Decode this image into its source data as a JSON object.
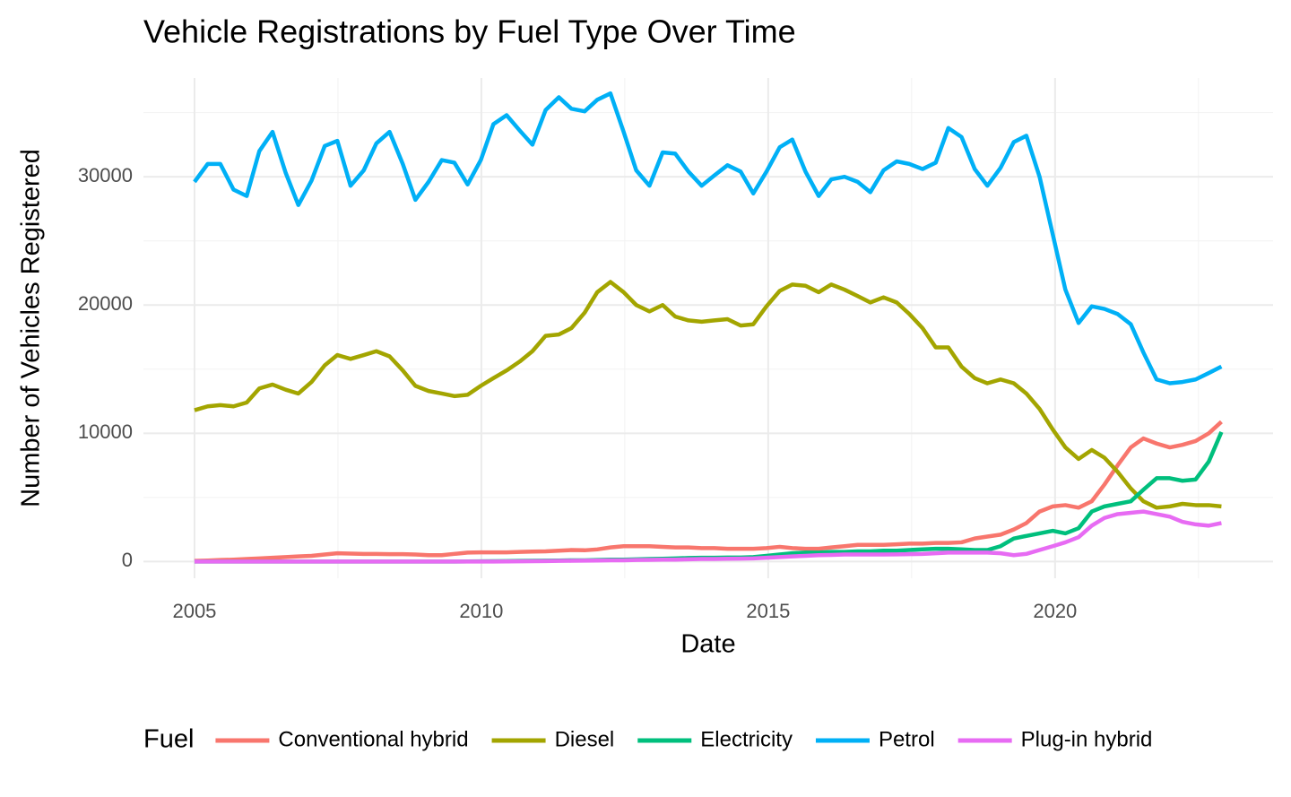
{
  "chart_data": {
    "type": "line",
    "title": "Vehicle Registrations by Fuel Type Over Time",
    "x_label": "Date",
    "y_label": "Number of Vehicles Registered",
    "legend_title": "Fuel",
    "legend_position": "bottom",
    "grid": true,
    "x": [
      2005.0,
      2005.23,
      2005.45,
      2005.68,
      2005.91,
      2006.13,
      2006.36,
      2006.59,
      2006.81,
      2007.04,
      2007.27,
      2007.49,
      2007.72,
      2007.95,
      2008.17,
      2008.4,
      2008.63,
      2008.85,
      2009.08,
      2009.31,
      2009.53,
      2009.76,
      2009.99,
      2010.21,
      2010.44,
      2010.67,
      2010.89,
      2011.12,
      2011.35,
      2011.57,
      2011.8,
      2012.02,
      2012.25,
      2012.48,
      2012.7,
      2012.93,
      2013.16,
      2013.38,
      2013.61,
      2013.84,
      2014.06,
      2014.29,
      2014.52,
      2014.74,
      2014.97,
      2015.2,
      2015.42,
      2015.65,
      2015.88,
      2016.1,
      2016.33,
      2016.56,
      2016.78,
      2017.01,
      2017.24,
      2017.46,
      2017.69,
      2017.92,
      2018.14,
      2018.37,
      2018.6,
      2018.82,
      2019.05,
      2019.28,
      2019.5,
      2019.73,
      2019.96,
      2020.18,
      2020.41,
      2020.64,
      2020.86,
      2021.09,
      2021.32,
      2021.54,
      2021.77,
      2022.0,
      2022.22,
      2022.45,
      2022.68,
      2022.9
    ],
    "xlim": [
      2004.11,
      2023.8
    ],
    "xticks": [
      2005,
      2010,
      2015,
      2020
    ],
    "xminor": [
      2007.5,
      2012.5,
      2017.5,
      2022.5
    ],
    "ylim": [
      -1300,
      37700
    ],
    "yticks": [
      0,
      10000,
      20000,
      30000
    ],
    "yminor": [
      5000,
      15000,
      25000,
      35000
    ],
    "series": [
      {
        "name": "Conventional hybrid",
        "color": "#F8766D",
        "values": [
          50,
          80,
          120,
          150,
          200,
          250,
          300,
          350,
          400,
          450,
          550,
          650,
          620,
          600,
          600,
          580,
          580,
          550,
          500,
          500,
          600,
          700,
          720,
          720,
          720,
          750,
          780,
          800,
          850,
          900,
          880,
          950,
          1100,
          1200,
          1200,
          1200,
          1150,
          1100,
          1100,
          1050,
          1050,
          1000,
          1000,
          1000,
          1050,
          1150,
          1050,
          1000,
          1000,
          1100,
          1200,
          1300,
          1300,
          1300,
          1350,
          1400,
          1400,
          1450,
          1450,
          1500,
          1800,
          1950,
          2100,
          2500,
          3000,
          3900,
          4300,
          4400,
          4200,
          4700,
          6000,
          7500,
          8900,
          9600,
          9200,
          8900,
          9100,
          9400,
          10000,
          10900
        ]
      },
      {
        "name": "Diesel",
        "color": "#A3A500",
        "values": [
          11800,
          12100,
          12200,
          12100,
          12400,
          13500,
          13800,
          13400,
          13100,
          14000,
          15300,
          16100,
          15800,
          16100,
          16400,
          16000,
          14900,
          13700,
          13300,
          13100,
          12900,
          13000,
          13700,
          14300,
          14900,
          15600,
          16400,
          17600,
          17700,
          18200,
          19400,
          21000,
          21800,
          21000,
          20000,
          19500,
          20000,
          19100,
          18800,
          18700,
          18800,
          18900,
          18400,
          18500,
          19900,
          21100,
          21600,
          21500,
          21000,
          21600,
          21200,
          20700,
          20200,
          20600,
          20200,
          19300,
          18200,
          16700,
          16700,
          15200,
          14300,
          13900,
          14200,
          13900,
          13100,
          11900,
          10300,
          8900,
          8000,
          8700,
          8100,
          7000,
          5700,
          4700,
          4200,
          4300,
          4500,
          4400,
          4400,
          4300
        ]
      },
      {
        "name": "Electricity",
        "color": "#00BF7D",
        "values": [
          0,
          0,
          0,
          0,
          0,
          0,
          0,
          0,
          0,
          0,
          0,
          0,
          0,
          0,
          0,
          0,
          0,
          0,
          0,
          0,
          0,
          10,
          20,
          30,
          40,
          50,
          60,
          70,
          80,
          100,
          100,
          120,
          150,
          150,
          180,
          200,
          220,
          250,
          280,
          300,
          300,
          320,
          320,
          350,
          450,
          550,
          650,
          700,
          700,
          750,
          750,
          800,
          800,
          850,
          850,
          900,
          950,
          1000,
          1000,
          950,
          900,
          900,
          1200,
          1800,
          2000,
          2200,
          2400,
          2200,
          2600,
          3900,
          4300,
          4500,
          4700,
          5600,
          6500,
          6500,
          6300,
          6400,
          7800,
          10100
        ]
      },
      {
        "name": "Petrol",
        "color": "#00B0F6",
        "values": [
          29600,
          31000,
          31000,
          29000,
          28500,
          32000,
          33500,
          30300,
          27800,
          29700,
          32400,
          32800,
          29300,
          30500,
          32600,
          33500,
          31000,
          28200,
          29600,
          31300,
          31100,
          29400,
          31300,
          34100,
          34800,
          33600,
          32500,
          35200,
          36200,
          35300,
          35100,
          36000,
          36500,
          33500,
          30500,
          29300,
          31900,
          31800,
          30400,
          29300,
          30100,
          30900,
          30400,
          28700,
          30400,
          32300,
          32900,
          30400,
          28500,
          29800,
          30000,
          29600,
          28800,
          30500,
          31200,
          31000,
          30600,
          31100,
          33800,
          33100,
          30600,
          29300,
          30700,
          32700,
          33200,
          30000,
          25500,
          21200,
          18600,
          19900,
          19700,
          19300,
          18500,
          16300,
          14200,
          13900,
          14000,
          14200,
          14700,
          15200
        ]
      },
      {
        "name": "Plug-in hybrid",
        "color": "#E76BF3",
        "values": [
          0,
          0,
          0,
          0,
          0,
          0,
          0,
          0,
          0,
          0,
          0,
          0,
          0,
          0,
          0,
          0,
          0,
          0,
          0,
          0,
          0,
          0,
          0,
          0,
          10,
          20,
          30,
          40,
          50,
          60,
          70,
          80,
          100,
          100,
          120,
          130,
          150,
          150,
          180,
          200,
          200,
          220,
          230,
          250,
          300,
          350,
          400,
          450,
          500,
          520,
          550,
          550,
          550,
          550,
          560,
          580,
          600,
          650,
          700,
          700,
          700,
          700,
          650,
          500,
          600,
          900,
          1200,
          1500,
          1900,
          2800,
          3400,
          3700,
          3800,
          3900,
          3700,
          3500,
          3100,
          2900,
          2800,
          3000
        ]
      }
    ]
  }
}
